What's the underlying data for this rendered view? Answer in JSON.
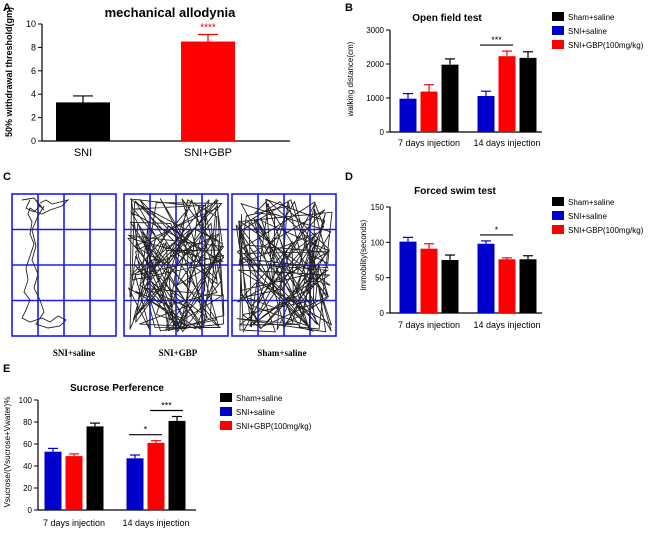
{
  "panel_labels": {
    "a": "A",
    "b": "B",
    "c": "C",
    "d": "D",
    "e": "E"
  },
  "colors": {
    "sham": "#000000",
    "sni": "#0000cc",
    "gbp": "#ff0000",
    "grid": "#1a1aff",
    "track": "#222222"
  },
  "chart_data": [
    {
      "id": "A",
      "type": "bar",
      "title": "mechanical allodynia",
      "ylabel": "50% withdrawal threshold(gm)",
      "xlabel": "",
      "ylim": [
        0,
        10
      ],
      "yticks": [
        "0",
        "2",
        "4",
        "6",
        "8",
        "10"
      ],
      "categories": [
        "SNI",
        "SNI+GBP"
      ],
      "values": [
        3.3,
        8.5
      ],
      "errors": [
        0.55,
        0.6
      ],
      "colors": [
        "#000000",
        "#ff0000"
      ],
      "significance": "****"
    },
    {
      "id": "B",
      "type": "bar",
      "title": "Open field test",
      "ylabel": "walking distance(cm)",
      "ylim": [
        0,
        3000
      ],
      "yticks": [
        "0",
        "1000",
        "2000",
        "3000"
      ],
      "categories": [
        "7 days injection",
        "14 days injection"
      ],
      "series": [
        {
          "name": "SNI+saline",
          "color": "#0000cc",
          "values": [
            980,
            1060
          ],
          "errors": [
            150,
            140
          ]
        },
        {
          "name": "SNI+GBP(100mg/kg)",
          "color": "#ff0000",
          "values": [
            1190,
            2230
          ],
          "errors": [
            200,
            150
          ]
        },
        {
          "name": "Sham+saline",
          "color": "#000000",
          "values": [
            1980,
            2180
          ],
          "errors": [
            170,
            180
          ]
        }
      ],
      "legend": [
        "Sham+saline",
        "SNI+saline",
        "SNI+GBP(100mg/kg)"
      ],
      "significance": "***"
    },
    {
      "id": "D",
      "type": "bar",
      "title": "Forced swim test",
      "ylabel": "immobility(seconds)",
      "ylim": [
        0,
        150
      ],
      "yticks": [
        "0",
        "50",
        "100",
        "150"
      ],
      "categories": [
        "7 days injection",
        "14 days injection"
      ],
      "series": [
        {
          "name": "SNI+saline",
          "color": "#0000cc",
          "values": [
            101,
            98
          ],
          "errors": [
            6,
            4
          ]
        },
        {
          "name": "SNI+GBP(100mg/kg)",
          "color": "#ff0000",
          "values": [
            91,
            76
          ],
          "errors": [
            7,
            2
          ]
        },
        {
          "name": "Sham+saline",
          "color": "#000000",
          "values": [
            75,
            76
          ],
          "errors": [
            7,
            5
          ]
        }
      ],
      "legend": [
        "Sham+saline",
        "SNI+saline",
        "SNI+GBP(100mg/kg)"
      ],
      "significance": "*"
    },
    {
      "id": "E",
      "type": "bar",
      "title": "Sucrose Perference",
      "ylabel": "Vsucrose/(Vsucrose+Vwater)%",
      "ylim": [
        0,
        100
      ],
      "yticks": [
        "0",
        "20",
        "40",
        "60",
        "80",
        "100"
      ],
      "categories": [
        "7 days injection",
        "14 days injection"
      ],
      "series": [
        {
          "name": "SNI+saline",
          "color": "#0000cc",
          "values": [
            53,
            47
          ],
          "errors": [
            3,
            3
          ]
        },
        {
          "name": "SNI+GBP(100mg/kg)",
          "color": "#ff0000",
          "values": [
            49,
            61
          ],
          "errors": [
            2,
            2
          ]
        },
        {
          "name": "Sham+saline",
          "color": "#000000",
          "values": [
            76,
            81
          ],
          "errors": [
            3,
            4
          ]
        }
      ],
      "legend": [
        "Sham+saline",
        "SNI+saline",
        "SNI+GBP(100mg/kg)"
      ],
      "significance": [
        "*",
        "***"
      ]
    }
  ],
  "panel_c": {
    "labels": [
      "SNI+saline",
      "SNI+GBP",
      "Sham+saline"
    ]
  }
}
